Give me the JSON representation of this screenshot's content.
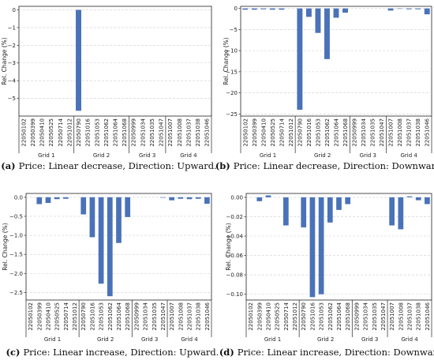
{
  "figure": {
    "colors": {
      "bar": "#4a72b8",
      "grid": "#cfcfcf",
      "axis": "#222222"
    }
  },
  "chart_data": [
    {
      "type": "bar",
      "panel_label": "(a)",
      "caption": "Price: Linear decrease, Direction: Upward.",
      "ylabel": "Rel. Change (%)",
      "ylim": [
        -6.0,
        0.2
      ],
      "yticks": [
        -5,
        -4,
        -3,
        -2,
        -1,
        0
      ],
      "ytick_labels": [
        "−5",
        "−4",
        "−3",
        "−2",
        "−1",
        "0"
      ],
      "grid": true,
      "categories": [
        "22050102",
        "22050399",
        "22050410",
        "22050525",
        "22050714",
        "22051012",
        "22050790",
        "22051016",
        "22051053",
        "22051062",
        "22051064",
        "22051068",
        "22050999",
        "22051034",
        "22051035",
        "22051047",
        "22051007",
        "22051008",
        "22051037",
        "22051038",
        "22051046"
      ],
      "groups": [
        {
          "name": "Grid 1",
          "count": 6
        },
        {
          "name": "Grid 2",
          "count": 6
        },
        {
          "name": "Grid 3",
          "count": 4
        },
        {
          "name": "Grid 4",
          "count": 5
        }
      ],
      "values": [
        0,
        0,
        0,
        0,
        0,
        0,
        -5.7,
        0,
        0,
        0,
        0,
        0,
        0,
        0,
        0,
        0,
        0,
        0,
        0,
        0,
        0
      ]
    },
    {
      "type": "bar",
      "panel_label": "(b)",
      "caption": "Price: Linear decrease, Direction: Downward.",
      "ylabel": "Rel. Change (%)",
      "ylim": [
        -25.5,
        0.5
      ],
      "yticks": [
        -25,
        -20,
        -15,
        -10,
        -5,
        0
      ],
      "ytick_labels": [
        "−25",
        "−20",
        "−15",
        "−10",
        "−5",
        "0"
      ],
      "grid": true,
      "categories": [
        "22050102",
        "22050399",
        "22050410",
        "22050525",
        "22050714",
        "22051012",
        "22050790",
        "22051016",
        "22051053",
        "22051062",
        "22051064",
        "22051068",
        "22050999",
        "22051034",
        "22051035",
        "22051047",
        "22051007",
        "22051008",
        "22051037",
        "22051038",
        "22051046"
      ],
      "groups": [
        {
          "name": "Grid 1",
          "count": 6
        },
        {
          "name": "Grid 2",
          "count": 6
        },
        {
          "name": "Grid 3",
          "count": 4
        },
        {
          "name": "Grid 4",
          "count": 5
        }
      ],
      "values": [
        -0.3,
        -0.3,
        -0.2,
        -0.3,
        -0.3,
        0,
        -24.0,
        -2.0,
        -5.8,
        -12.0,
        -2.2,
        -1.0,
        0,
        0,
        0,
        0,
        -0.5,
        -0.1,
        -0.2,
        -0.2,
        -1.4
      ]
    },
    {
      "type": "bar",
      "panel_label": "(c)",
      "caption": "Price: Linear increase, Direction: Upward.",
      "ylabel": "Rel. Change (%)",
      "ylim": [
        -2.7,
        0.1
      ],
      "yticks": [
        -2.5,
        -2.0,
        -1.5,
        -1.0,
        -0.5,
        0.0
      ],
      "ytick_labels": [
        "−2.5",
        "−2.0",
        "−1.5",
        "−1.0",
        "−0.5",
        "0.0"
      ],
      "grid": true,
      "categories": [
        "22050102",
        "22050399",
        "22050410",
        "22050525",
        "22050714",
        "22051012",
        "22050790",
        "22051016",
        "22051053",
        "22051062",
        "22051064",
        "22051068",
        "22050999",
        "22051034",
        "22051035",
        "22051047",
        "22051007",
        "22051008",
        "22051037",
        "22051038",
        "22051046"
      ],
      "groups": [
        {
          "name": "Grid 1",
          "count": 6
        },
        {
          "name": "Grid 2",
          "count": 6
        },
        {
          "name": "Grid 3",
          "count": 4
        },
        {
          "name": "Grid 4",
          "count": 5
        }
      ],
      "values": [
        0,
        -0.18,
        -0.15,
        -0.05,
        -0.04,
        0,
        -0.45,
        -1.05,
        -2.27,
        -2.6,
        -1.2,
        -0.52,
        0,
        0,
        0,
        -0.01,
        -0.08,
        -0.04,
        -0.05,
        -0.04,
        -0.17
      ]
    },
    {
      "type": "bar",
      "panel_label": "(d)",
      "caption": "Price: Linear increase, Direction: Downward.",
      "ylabel": "Rel. Change (%)",
      "ylim": [
        -0.106,
        0.004
      ],
      "yticks": [
        -0.1,
        -0.08,
        -0.06,
        -0.04,
        -0.02,
        0.0
      ],
      "ytick_labels": [
        "−0.10",
        "−0.08",
        "−0.06",
        "−0.04",
        "−0.02",
        "0.00"
      ],
      "grid": true,
      "categories": [
        "22050102",
        "22050399",
        "22050410",
        "22050525",
        "22050714",
        "22051012",
        "22050790",
        "22051016",
        "22051053",
        "22051062",
        "22051064",
        "22051068",
        "22050999",
        "22051034",
        "22051035",
        "22051047",
        "22051007",
        "22051008",
        "22051037",
        "22051038",
        "22051046"
      ],
      "groups": [
        {
          "name": "Grid 1",
          "count": 6
        },
        {
          "name": "Grid 2",
          "count": 6
        },
        {
          "name": "Grid 3",
          "count": 4
        },
        {
          "name": "Grid 4",
          "count": 5
        }
      ],
      "values": [
        0,
        -0.004,
        0.002,
        0,
        -0.029,
        0,
        -0.031,
        -0.103,
        -0.1,
        -0.026,
        -0.013,
        -0.007,
        0,
        0,
        0,
        0,
        -0.029,
        -0.033,
        0.001,
        -0.003,
        -0.007
      ]
    }
  ]
}
